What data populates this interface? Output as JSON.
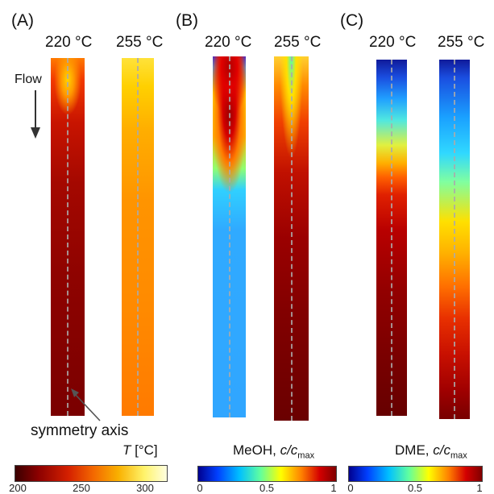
{
  "panels": [
    {
      "label": "(A)",
      "temps": [
        "220 °C",
        "255 °C"
      ]
    },
    {
      "label": "(B)",
      "temps": [
        "220 °C",
        "255 °C"
      ]
    },
    {
      "label": "(C)",
      "temps": [
        "220 °C",
        "255 °C"
      ]
    }
  ],
  "flow_label": "Flow",
  "symmetry_label": "symmetry axis",
  "colorbars": [
    {
      "title_prefix": "",
      "title_var": "T",
      "title_suffix": " [°C]",
      "ticks": [
        "200",
        "250",
        "300"
      ]
    },
    {
      "title_prefix": "MeOH, ",
      "title_var": "c/c",
      "title_sub": "max",
      "ticks": [
        "0",
        "0.5",
        "1"
      ]
    },
    {
      "title_prefix": "DME, ",
      "title_var": "c/c",
      "title_sub": "max",
      "ticks": [
        "0",
        "0.5",
        "1"
      ]
    }
  ],
  "colors": {
    "temp_scale": [
      "#3a0000",
      "#8b0000",
      "#d42000",
      "#f46a00",
      "#f9b000",
      "#fff36a",
      "#ffffe0"
    ],
    "jet_scale": [
      "#00008f",
      "#0040ff",
      "#00c0ff",
      "#60ff9f",
      "#ffff00",
      "#ff8000",
      "#d40000",
      "#800000"
    ]
  }
}
